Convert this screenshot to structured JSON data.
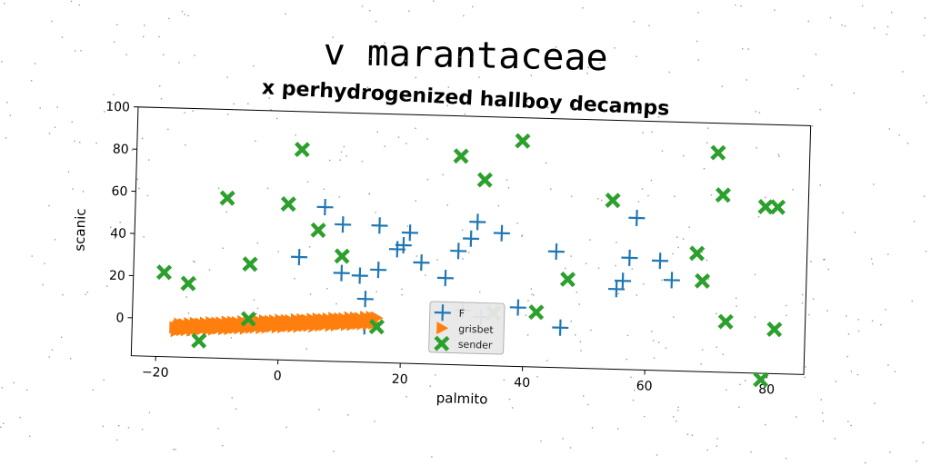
{
  "chart_data": {
    "type": "scatter",
    "title": "v marantaceae",
    "subtitle": "x perhydrogenized hallboy decamps",
    "xlabel": "palmito",
    "ylabel": "scanic",
    "xlim": [
      -24,
      86
    ],
    "ylim": [
      -18,
      100
    ],
    "xticks": [
      -20,
      0,
      20,
      40,
      60,
      80
    ],
    "yticks": [
      0,
      20,
      40,
      60,
      80,
      100
    ],
    "legend_position": "bottom-center",
    "series": [
      {
        "name": "F",
        "marker": "plus",
        "color": "#1f77b4",
        "points": [
          [
            3,
            31
          ],
          [
            7,
            55
          ],
          [
            10,
            47
          ],
          [
            10,
            24
          ],
          [
            13,
            23
          ],
          [
            14,
            12
          ],
          [
            14,
            -1
          ],
          [
            16,
            26
          ],
          [
            16,
            47
          ],
          [
            19,
            36
          ],
          [
            20,
            38
          ],
          [
            21,
            44
          ],
          [
            23,
            30
          ],
          [
            27,
            23
          ],
          [
            29,
            36
          ],
          [
            30,
            8
          ],
          [
            31,
            42
          ],
          [
            32,
            50
          ],
          [
            33,
            5
          ],
          [
            36,
            45
          ],
          [
            39,
            10
          ],
          [
            45,
            37
          ],
          [
            46,
            1
          ],
          [
            55,
            20
          ],
          [
            56,
            24
          ],
          [
            57,
            35
          ],
          [
            58,
            54
          ],
          [
            62,
            34
          ],
          [
            64,
            25
          ]
        ]
      },
      {
        "name": "grisbet",
        "marker": "triangle-right",
        "color": "#ff7f0e",
        "segment": {
          "x": [
            -17,
            16
          ],
          "y": [
            -4,
            2
          ]
        }
      },
      {
        "name": "sender",
        "marker": "x-filled",
        "color": "#2ca02c",
        "points": [
          [
            -19,
            22
          ],
          [
            -15,
            17
          ],
          [
            -13,
            -10
          ],
          [
            -9,
            58
          ],
          [
            -5,
            27
          ],
          [
            -5,
            1
          ],
          [
            1,
            56
          ],
          [
            3,
            82
          ],
          [
            6,
            44
          ],
          [
            10,
            32
          ],
          [
            16,
            -1
          ],
          [
            29,
            81
          ],
          [
            33,
            70
          ],
          [
            35,
            7
          ],
          [
            39,
            89
          ],
          [
            42,
            8
          ],
          [
            47,
            24
          ],
          [
            54,
            62
          ],
          [
            68,
            38
          ],
          [
            69,
            25
          ],
          [
            71,
            86
          ],
          [
            72,
            66
          ],
          [
            73,
            6
          ],
          [
            79,
            61
          ],
          [
            81,
            61
          ],
          [
            79,
            -21
          ],
          [
            81,
            3
          ]
        ]
      }
    ]
  }
}
